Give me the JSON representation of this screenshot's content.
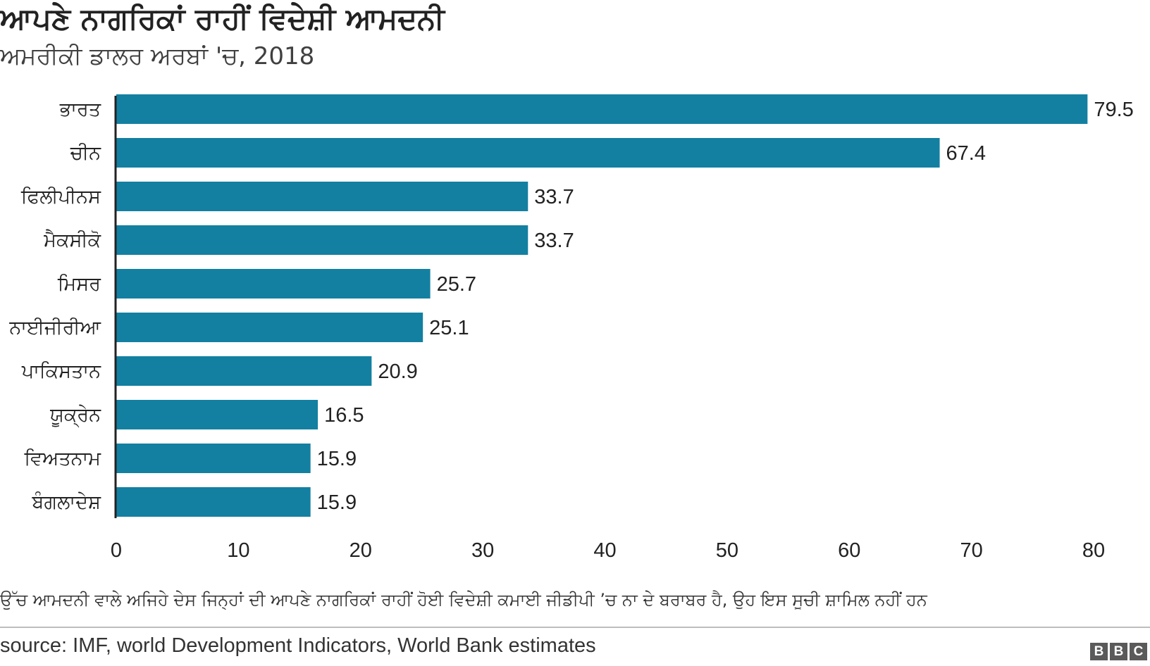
{
  "header": {
    "title": "ਆਪਣੇ ਨਾਗਰਿਕਾਂ ਰਾਹੀਂ ਵਿਦੇਸ਼ੀ ਆਮਦਨੀ",
    "subtitle": "ਅਮਰੀਕੀ ਡਾਲਰ ਅਰਬਾਂ 'ਚ, 2018"
  },
  "footer": {
    "note": "ਉੱਚ ਆਮਦਨੀ ਵਾਲੇ ਅਜਿਹੇ ਦੇਸ ਜਿਨ੍ਹਾਂ ਦੀ ਆਪਣੇ ਨਾਗਰਿਕਾਂ ਰਾਹੀਂ ਹੋਈ ਵਿਦੇਸ਼ੀ ਕਮਾਈ ਜੀਡੀਪੀ ’ਚ ਨਾ ਦੇ ਬਰਾਬਰ ਹੈ, ਉਹ ਇਸ ਸੂਚੀ ਸ਼ਾਮਿਲ ਨਹੀਂ ਹਨ",
    "source": "source: IMF, world Development Indicators, World Bank estimates",
    "logo_letters": [
      "B",
      "B",
      "C"
    ]
  },
  "colors": {
    "bar": "#1380A1",
    "axis": "#222222",
    "text": "#222222"
  },
  "chart_data": {
    "type": "bar",
    "orientation": "horizontal",
    "title": "ਆਪਣੇ ਨਾਗਰਿਕਾਂ ਰਾਹੀਂ ਵਿਦੇਸ਼ੀ ਆਮਦਨੀ",
    "subtitle": "ਅਮਰੀਕੀ ਡਾਲਰ ਅਰਬਾਂ 'ਚ, 2018",
    "categories": [
      "ਭਾਰਤ",
      "ਚੀਨ",
      "ਫਿਲੀਪੀਨਸ",
      "ਮੈਕਸੀਕੋ",
      "ਮਿਸਰ",
      "ਨਾਈਜੀਰੀਆ",
      "ਪਾਕਿਸਤਾਨ",
      "ਯੂਕ੍ਰੇਨ",
      "ਵਿਅਤਨਾਮ",
      "ਬੰਗਲਾਦੇਸ਼"
    ],
    "values": [
      79.5,
      67.4,
      33.7,
      33.7,
      25.7,
      25.1,
      20.9,
      16.5,
      15.9,
      15.9
    ],
    "value_labels": [
      "79.5",
      "67.4",
      "33.7",
      "33.7",
      "25.7",
      "25.1",
      "20.9",
      "16.5",
      "15.9",
      "15.9"
    ],
    "xlim": [
      0,
      80
    ],
    "xticks": [
      0,
      10,
      20,
      30,
      40,
      50,
      60,
      70,
      80
    ],
    "xtick_labels": [
      "0",
      "10",
      "20",
      "30",
      "40",
      "50",
      "60",
      "70",
      "80"
    ],
    "xlabel": "",
    "ylabel": "",
    "grid": false,
    "legend": "none"
  }
}
